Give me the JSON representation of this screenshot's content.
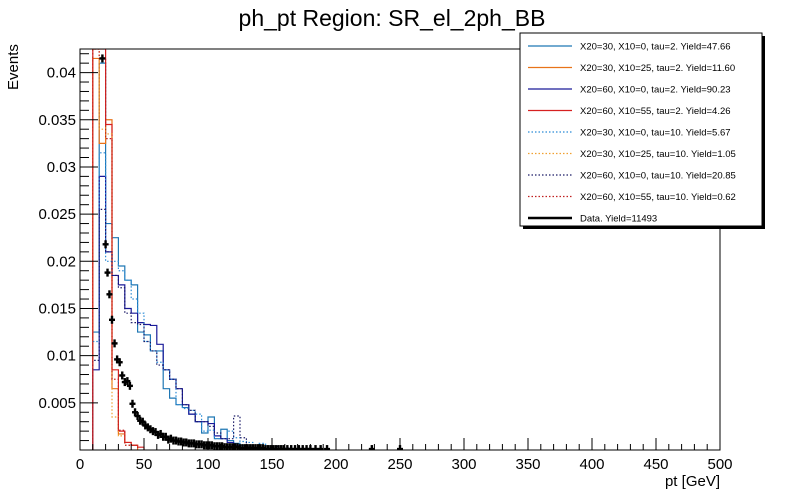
{
  "chart_data": {
    "type": "histogram",
    "title": "ph_pt Region: SR_el_2ph_BB",
    "xlabel": "pt [GeV]",
    "ylabel": "Events",
    "xlim": [
      0,
      500
    ],
    "ylim": [
      0,
      0.0425
    ],
    "x_ticks": [
      0,
      50,
      100,
      150,
      200,
      250,
      300,
      350,
      400,
      450,
      500
    ],
    "y_ticks": [
      0.005,
      0.01,
      0.015,
      0.02,
      0.025,
      0.03,
      0.035,
      0.04
    ],
    "y_tick_labels": [
      "0.005",
      "0.01",
      "0.015",
      "0.02",
      "0.025",
      "0.03",
      "0.035",
      "0.04"
    ],
    "bin_width": 5,
    "legend_position": "top-right",
    "series": [
      {
        "name": "X20=30, X10=0, tau=2. Yield=47.66",
        "color": "#1f77b4",
        "style": "solid",
        "points": [
          [
            10,
            0.0125
          ],
          [
            15,
            0.041
          ],
          [
            20,
            0.024
          ],
          [
            25,
            0.0225
          ],
          [
            30,
            0.0195
          ],
          [
            35,
            0.018
          ],
          [
            40,
            0.0175
          ],
          [
            45,
            0.0125
          ],
          [
            50,
            0.0122
          ],
          [
            55,
            0.0105
          ],
          [
            60,
            0.0105
          ],
          [
            65,
            0.0065
          ],
          [
            70,
            0.0055
          ],
          [
            75,
            0.0048
          ],
          [
            80,
            0.0045
          ],
          [
            85,
            0.0038
          ],
          [
            90,
            0.003
          ],
          [
            95,
            0.0018
          ],
          [
            100,
            0.0035
          ],
          [
            105,
            0.0012
          ],
          [
            110,
            0.0022
          ],
          [
            115,
            0.001
          ],
          [
            120,
            0.0007
          ],
          [
            125,
            0.0005
          ],
          [
            130,
            0.0003
          ],
          [
            140,
            0.0002
          ]
        ]
      },
      {
        "name": "X20=30, X10=25, tau=2. Yield=11.60",
        "color": "#e8731a",
        "style": "solid",
        "points": [
          [
            10,
            0.0415
          ],
          [
            15,
            0.0325
          ],
          [
            20,
            0.035
          ],
          [
            25,
            0.0065
          ],
          [
            30,
            0.0017
          ],
          [
            35,
            0.0008
          ],
          [
            40,
            0.0005
          ]
        ]
      },
      {
        "name": "X20=60, X10=0, tau=2. Yield=90.23",
        "color": "#1a1a99",
        "style": "solid",
        "points": [
          [
            10,
            0.0085
          ],
          [
            15,
            0.029
          ],
          [
            20,
            0.021
          ],
          [
            25,
            0.0185
          ],
          [
            30,
            0.0175
          ],
          [
            35,
            0.015
          ],
          [
            40,
            0.0145
          ],
          [
            45,
            0.0135
          ],
          [
            50,
            0.0133
          ],
          [
            55,
            0.0132
          ],
          [
            60,
            0.0112
          ],
          [
            65,
            0.0085
          ],
          [
            70,
            0.0075
          ],
          [
            75,
            0.0065
          ],
          [
            80,
            0.0048
          ],
          [
            85,
            0.0038
          ],
          [
            90,
            0.003
          ],
          [
            95,
            0.003
          ],
          [
            100,
            0.0028
          ],
          [
            105,
            0.0015
          ],
          [
            110,
            0.0012
          ],
          [
            115,
            0.0008
          ],
          [
            120,
            0.0005
          ],
          [
            125,
            0.0003
          ],
          [
            130,
            0.0003
          ],
          [
            140,
            0.0002
          ],
          [
            150,
            0.0001
          ]
        ]
      },
      {
        "name": "X20=60, X10=55, tau=2. Yield=4.26",
        "color": "#d62020",
        "style": "solid",
        "points": [
          [
            10,
            0.044
          ],
          [
            15,
            0.0425
          ],
          [
            20,
            0.0345
          ],
          [
            25,
            0.0085
          ],
          [
            30,
            0.002
          ],
          [
            35,
            0.0008
          ],
          [
            40,
            0.0005
          ],
          [
            45,
            0.0003
          ]
        ]
      },
      {
        "name": "X20=30, X10=0, tau=10. Yield=5.67",
        "color": "#2a8bd6",
        "style": "dotted",
        "points": [
          [
            10,
            0.0115
          ],
          [
            15,
            0.0315
          ],
          [
            20,
            0.02
          ],
          [
            25,
            0.02
          ],
          [
            30,
            0.019
          ],
          [
            35,
            0.018
          ],
          [
            40,
            0.016
          ],
          [
            45,
            0.0145
          ],
          [
            50,
            0.0115
          ],
          [
            55,
            0.0105
          ],
          [
            60,
            0.0093
          ],
          [
            65,
            0.0085
          ],
          [
            70,
            0.0075
          ],
          [
            75,
            0.0048
          ],
          [
            80,
            0.0044
          ],
          [
            85,
            0.0042
          ],
          [
            90,
            0.0038
          ],
          [
            95,
            0.002
          ],
          [
            100,
            0.0021
          ],
          [
            105,
            0.0012
          ],
          [
            110,
            0.0012
          ],
          [
            115,
            0.002
          ],
          [
            120,
            0.0013
          ],
          [
            125,
            0.0009
          ],
          [
            130,
            0.0008
          ],
          [
            140,
            0.0007
          ],
          [
            150,
            0.0004
          ]
        ]
      },
      {
        "name": "X20=30, X10=25, tau=10. Yield=1.05",
        "color": "#f0a030",
        "style": "dotted",
        "points": [
          [
            10,
            0.043
          ],
          [
            15,
            0.034
          ],
          [
            20,
            0.0335
          ],
          [
            25,
            0.0035
          ],
          [
            30,
            0.0015
          ],
          [
            35,
            0.0005
          ],
          [
            40,
            0.0005
          ]
        ]
      },
      {
        "name": "X20=60, X10=0, tau=10. Yield=20.85",
        "color": "#1a1a66",
        "style": "dotted",
        "points": [
          [
            10,
            0.0095
          ],
          [
            15,
            0.0255
          ],
          [
            20,
            0.021
          ],
          [
            25,
            0.0185
          ],
          [
            30,
            0.0172
          ],
          [
            35,
            0.0145
          ],
          [
            40,
            0.0135
          ],
          [
            45,
            0.0133
          ],
          [
            50,
            0.0115
          ],
          [
            55,
            0.0105
          ],
          [
            60,
            0.009
          ],
          [
            65,
            0.0085
          ],
          [
            70,
            0.0075
          ],
          [
            75,
            0.0065
          ],
          [
            80,
            0.0048
          ],
          [
            85,
            0.0042
          ],
          [
            90,
            0.003
          ],
          [
            95,
            0.003
          ],
          [
            100,
            0.0025
          ],
          [
            105,
            0.0018
          ],
          [
            110,
            0.0012
          ],
          [
            115,
            0.0012
          ],
          [
            120,
            0.0036
          ],
          [
            125,
            0.0013
          ],
          [
            130,
            0.0005
          ],
          [
            140,
            0.0004
          ],
          [
            150,
            0.0004
          ],
          [
            160,
            0.0002
          ]
        ]
      },
      {
        "name": "X20=60, X10=55, tau=10. Yield=0.62",
        "color": "#c02020",
        "style": "dotted",
        "points": [
          [
            10,
            0.0425
          ],
          [
            15,
            0.0415
          ],
          [
            20,
            0.033
          ],
          [
            25,
            0.0075
          ],
          [
            30,
            0.0021
          ],
          [
            35,
            0.0005
          ],
          [
            40,
            0.0005
          ]
        ]
      }
    ],
    "data_series": {
      "name": "Data. Yield=11493",
      "color": "#000000",
      "points": [
        [
          17.5,
          0.0415
        ],
        [
          20,
          0.0218
        ],
        [
          21.5,
          0.0188
        ],
        [
          23,
          0.0165
        ],
        [
          25,
          0.0138
        ],
        [
          27,
          0.0113
        ],
        [
          29,
          0.0096
        ],
        [
          31,
          0.0093
        ],
        [
          33,
          0.0079
        ],
        [
          35,
          0.0072
        ],
        [
          37,
          0.0073
        ],
        [
          39,
          0.0068
        ],
        [
          41,
          0.0049
        ],
        [
          43,
          0.004
        ],
        [
          45,
          0.0036
        ],
        [
          47,
          0.0031
        ],
        [
          49,
          0.003
        ],
        [
          51,
          0.0026
        ],
        [
          53,
          0.0024
        ],
        [
          55,
          0.0022
        ],
        [
          57,
          0.002
        ],
        [
          59,
          0.0019
        ],
        [
          61,
          0.0016
        ],
        [
          63,
          0.0017
        ],
        [
          65,
          0.0014
        ],
        [
          67,
          0.0014
        ],
        [
          69,
          0.0011
        ],
        [
          71,
          0.0012
        ],
        [
          73,
          0.001
        ],
        [
          75,
          0.001
        ],
        [
          77,
          0.0009
        ],
        [
          79,
          0.0009
        ],
        [
          81,
          0.0008
        ],
        [
          83,
          0.0008
        ],
        [
          85,
          0.0007
        ],
        [
          87,
          0.0007
        ],
        [
          89,
          0.0007
        ],
        [
          91,
          0.0006
        ],
        [
          93,
          0.0006
        ],
        [
          95,
          0.0006
        ],
        [
          97,
          0.0005
        ],
        [
          99,
          0.0005
        ],
        [
          101,
          0.0005
        ],
        [
          103,
          0.0005
        ],
        [
          105,
          0.0004
        ],
        [
          107,
          0.0004
        ],
        [
          109,
          0.0004
        ],
        [
          111,
          0.0004
        ],
        [
          113,
          0.0003
        ],
        [
          115,
          0.0003
        ],
        [
          117,
          0.0003
        ],
        [
          119,
          0.0003
        ],
        [
          121,
          0.0003
        ],
        [
          123,
          0.0003
        ],
        [
          125,
          0.0002
        ],
        [
          127,
          0.0002
        ],
        [
          129,
          0.0002
        ],
        [
          131,
          0.0002
        ],
        [
          133,
          0.0002
        ],
        [
          135,
          0.0002
        ],
        [
          137,
          0.0002
        ],
        [
          139,
          0.0002
        ],
        [
          141,
          0.0002
        ],
        [
          143,
          0.0002
        ],
        [
          145,
          0.0001
        ],
        [
          147,
          0.0001
        ],
        [
          149,
          0.0001
        ],
        [
          151,
          0.0001
        ],
        [
          153,
          0.0001
        ],
        [
          155,
          0.0001
        ],
        [
          157,
          0.0001
        ],
        [
          159,
          0.0001
        ],
        [
          162,
          0.0001
        ],
        [
          165,
          0.0001
        ],
        [
          168,
          0.0001
        ],
        [
          171,
          0.0001
        ],
        [
          174,
          0.0001
        ],
        [
          177,
          0.0001
        ],
        [
          180,
          0.0001
        ],
        [
          184,
          0.0001
        ],
        [
          188,
          0.0001
        ],
        [
          193,
          0.0001
        ],
        [
          228,
          0.0001
        ],
        [
          250,
          0.0001
        ]
      ]
    }
  }
}
